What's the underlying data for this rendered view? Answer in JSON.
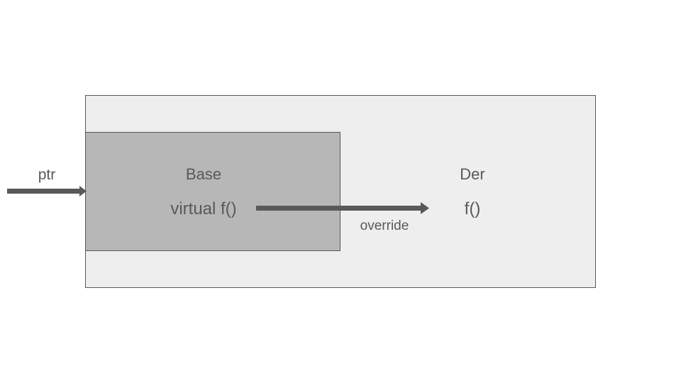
{
  "diagram": {
    "derived": {
      "title": "Der",
      "method": "f()"
    },
    "base": {
      "title": "Base",
      "method": "virtual f()"
    },
    "pointer_label": "ptr",
    "override_label": "override"
  },
  "colors": {
    "outer_fill": "#eeeeee",
    "inner_fill": "#b7b7b7",
    "stroke": "#595959",
    "text": "#595959",
    "arrow": "#595959"
  }
}
